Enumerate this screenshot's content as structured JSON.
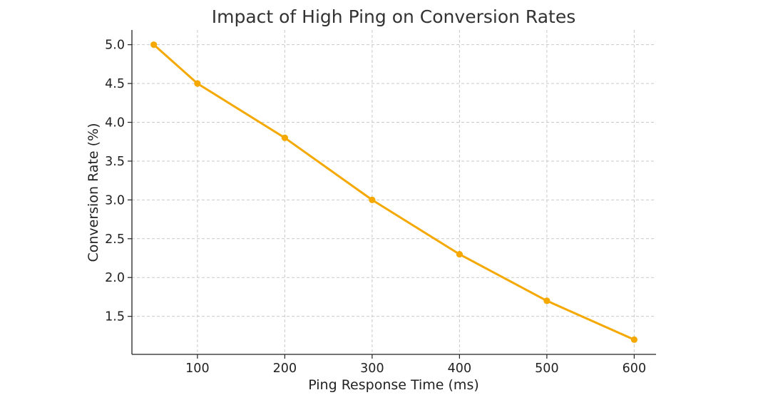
{
  "chart_data": {
    "type": "line",
    "title": "Impact of High Ping on Conversion Rates",
    "xlabel": "Ping Response Time (ms)",
    "ylabel": "Conversion Rate (%)",
    "x": [
      50,
      100,
      200,
      300,
      400,
      500,
      600
    ],
    "series": [
      {
        "values": [
          5.0,
          4.5,
          3.8,
          3.0,
          2.3,
          1.7,
          1.2
        ]
      }
    ],
    "xlim": [
      25,
      625
    ],
    "ylim": [
      1.01,
      5.19
    ],
    "xticks": [
      100,
      200,
      300,
      400,
      500,
      600
    ],
    "xtick_labels": [
      "100",
      "200",
      "300",
      "400",
      "500",
      "600"
    ],
    "yticks": [
      1.5,
      2.0,
      2.5,
      3.0,
      3.5,
      4.0,
      4.5,
      5.0
    ],
    "ytick_labels": [
      "1.5",
      "2.0",
      "2.5",
      "3.0",
      "3.5",
      "4.0",
      "4.5",
      "5.0"
    ],
    "grid": true,
    "line_color": "#f5a800",
    "marker": "circle"
  }
}
